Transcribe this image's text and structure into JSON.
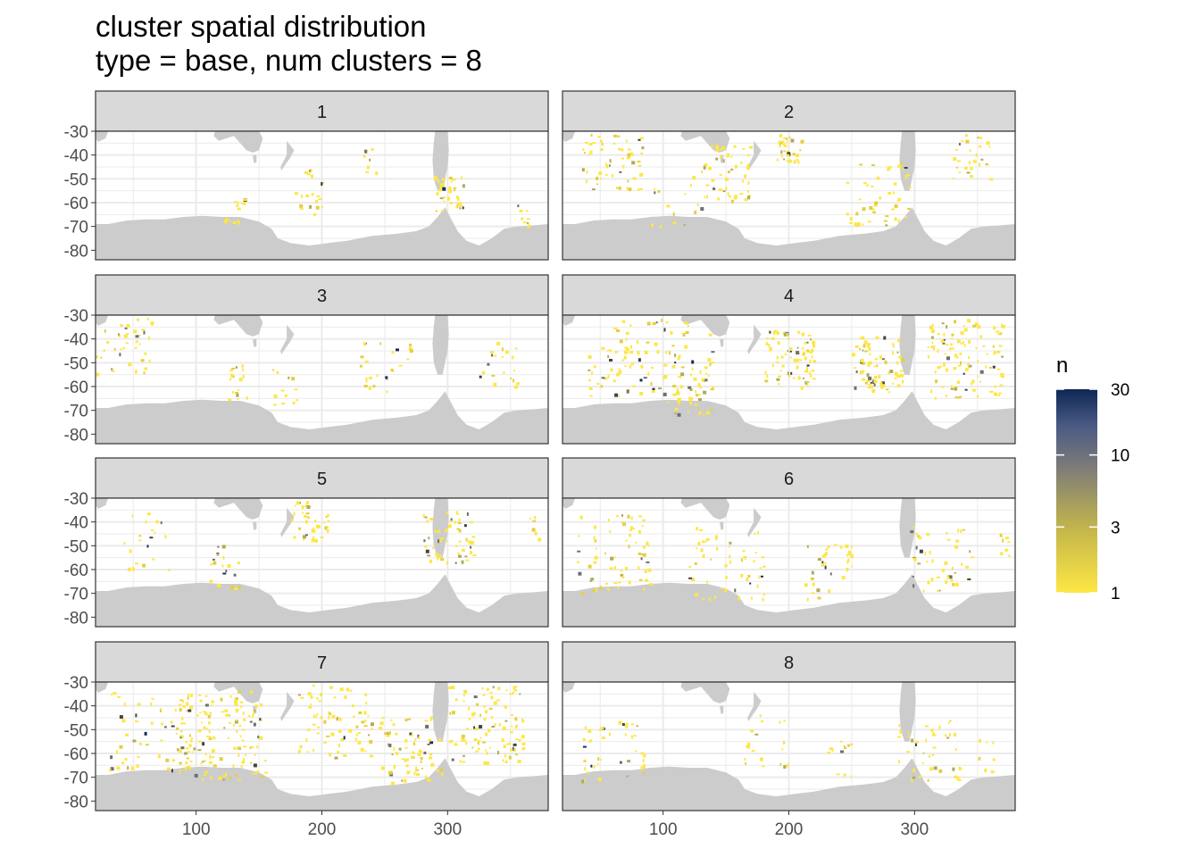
{
  "title": [
    "cluster spatial distribution",
    "type = base, num clusters = 8"
  ],
  "chart_data": {
    "type": "heatmap",
    "title": "cluster spatial distribution\ntype = base, num clusters = 8",
    "xlabel": "",
    "ylabel": "",
    "x_ticks": [
      100,
      200,
      300
    ],
    "y_ticks": [
      -30,
      -40,
      -50,
      -60,
      -70,
      -80
    ],
    "xlim": [
      20,
      380
    ],
    "ylim": [
      -84,
      -30
    ],
    "grid": true,
    "facets": [
      "1",
      "2",
      "3",
      "4",
      "5",
      "6",
      "7",
      "8"
    ],
    "legend": {
      "title": "n",
      "scale": "log",
      "breaks": [
        1,
        3,
        10,
        30
      ],
      "range": [
        1,
        30
      ],
      "position": "right",
      "colors": [
        "#fde745",
        "#c6b84a",
        "#7c7b78",
        "#4a5a84",
        "#0e2754"
      ]
    },
    "land_color": "#cccccc",
    "panel_border_color": "#333333"
  }
}
